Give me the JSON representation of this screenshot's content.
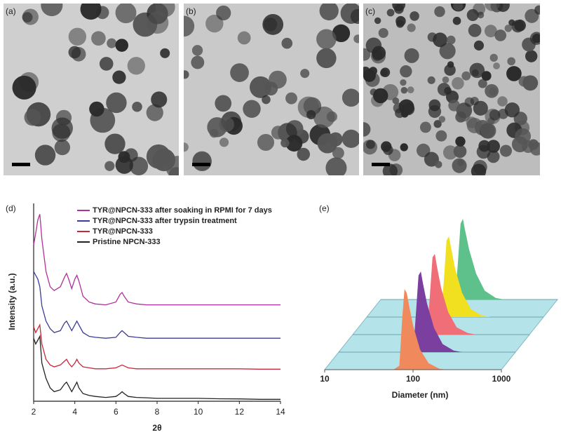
{
  "images": [
    {
      "label": "(a)"
    },
    {
      "label": "(b)"
    },
    {
      "label": "(c)"
    }
  ],
  "chart_data": [
    {
      "type": "line",
      "panel_label": "(d)",
      "xlabel": "2θ",
      "ylabel": "Intensity (a.u.)",
      "x": [
        2,
        2.1,
        2.2,
        2.3,
        2.4,
        2.6,
        2.8,
        3.0,
        3.3,
        3.5,
        3.6,
        3.7,
        3.85,
        4.0,
        4.1,
        4.2,
        4.4,
        4.7,
        5.0,
        5.5,
        6.0,
        6.2,
        6.3,
        6.4,
        6.6,
        7.0,
        7.5,
        8,
        9,
        10,
        11,
        12,
        13,
        14
      ],
      "xlim": [
        2,
        14
      ],
      "xticks": [
        2,
        4,
        6,
        8,
        10,
        12,
        14
      ],
      "ylim": [
        0,
        100
      ],
      "series": [
        {
          "name": "TYR@NPCN-333 after soaking in RPMI for 7 days",
          "color": "#b0309c",
          "values": [
            82,
            88,
            95,
            98,
            85,
            68,
            60,
            58,
            60,
            65,
            67,
            64,
            59,
            64,
            66,
            63,
            55,
            52,
            51,
            50.5,
            52,
            56,
            57,
            55,
            52,
            51,
            50.5,
            50.5,
            50.5,
            50.5,
            50.5,
            50.5,
            50.5,
            50.5
          ]
        },
        {
          "name": "TYR@NPCN-333 after trypsin treatment",
          "color": "#3b3b9b",
          "values": [
            68,
            66,
            64,
            60,
            50,
            42,
            38,
            36,
            37,
            41,
            42,
            40,
            37,
            40,
            42,
            40,
            36,
            34,
            33.5,
            33,
            33.5,
            36,
            37,
            36,
            34,
            33.5,
            33,
            33,
            33,
            33,
            33,
            33,
            33,
            33
          ]
        },
        {
          "name": "TYR@NPCN-333",
          "color": "#c8283a",
          "values": [
            39,
            36,
            38,
            40,
            30,
            22,
            19,
            18,
            19,
            21,
            22,
            20,
            18,
            20,
            22,
            20,
            18,
            17.5,
            17,
            17,
            17.5,
            18.5,
            19,
            18.5,
            17.5,
            17,
            17,
            17,
            17,
            17,
            17,
            17,
            16.8,
            16.8
          ]
        },
        {
          "name": "Pristine NPCN-333",
          "color": "#222222",
          "values": [
            33,
            30,
            32,
            34,
            20,
            12,
            7,
            5,
            6,
            9,
            10,
            8,
            5,
            8,
            10,
            7,
            4,
            3,
            2.5,
            2,
            2.5,
            4,
            5,
            4,
            2.5,
            2,
            1.8,
            1.5,
            1.5,
            1.5,
            1.3,
            1.2,
            1,
            1
          ]
        }
      ]
    },
    {
      "type": "ridgeline",
      "panel_label": "(e)",
      "xlabel": "Diameter (nm)",
      "xscale": "log",
      "x": [
        60,
        70,
        75,
        80,
        85,
        90,
        100,
        120,
        150,
        200,
        250
      ],
      "xlim": [
        10,
        1000
      ],
      "xticks": [
        10,
        100,
        1000
      ],
      "ylim": [
        0,
        100
      ],
      "series": [
        {
          "color": "#f08a5d",
          "values": [
            0,
            5,
            60,
            100,
            95,
            80,
            55,
            25,
            8,
            1,
            0
          ]
        },
        {
          "color": "#7b3fa0",
          "values": [
            0,
            4,
            50,
            95,
            100,
            85,
            60,
            30,
            10,
            2,
            0
          ]
        },
        {
          "color": "#f06e78",
          "values": [
            0,
            4,
            52,
            96,
            100,
            84,
            58,
            28,
            9,
            2,
            0
          ]
        },
        {
          "color": "#f0e020",
          "values": [
            0,
            4,
            50,
            95,
            100,
            86,
            60,
            30,
            10,
            2,
            0
          ]
        },
        {
          "color": "#5ec08a",
          "values": [
            0,
            4,
            50,
            94,
            100,
            86,
            62,
            32,
            11,
            2,
            0
          ]
        }
      ]
    }
  ]
}
